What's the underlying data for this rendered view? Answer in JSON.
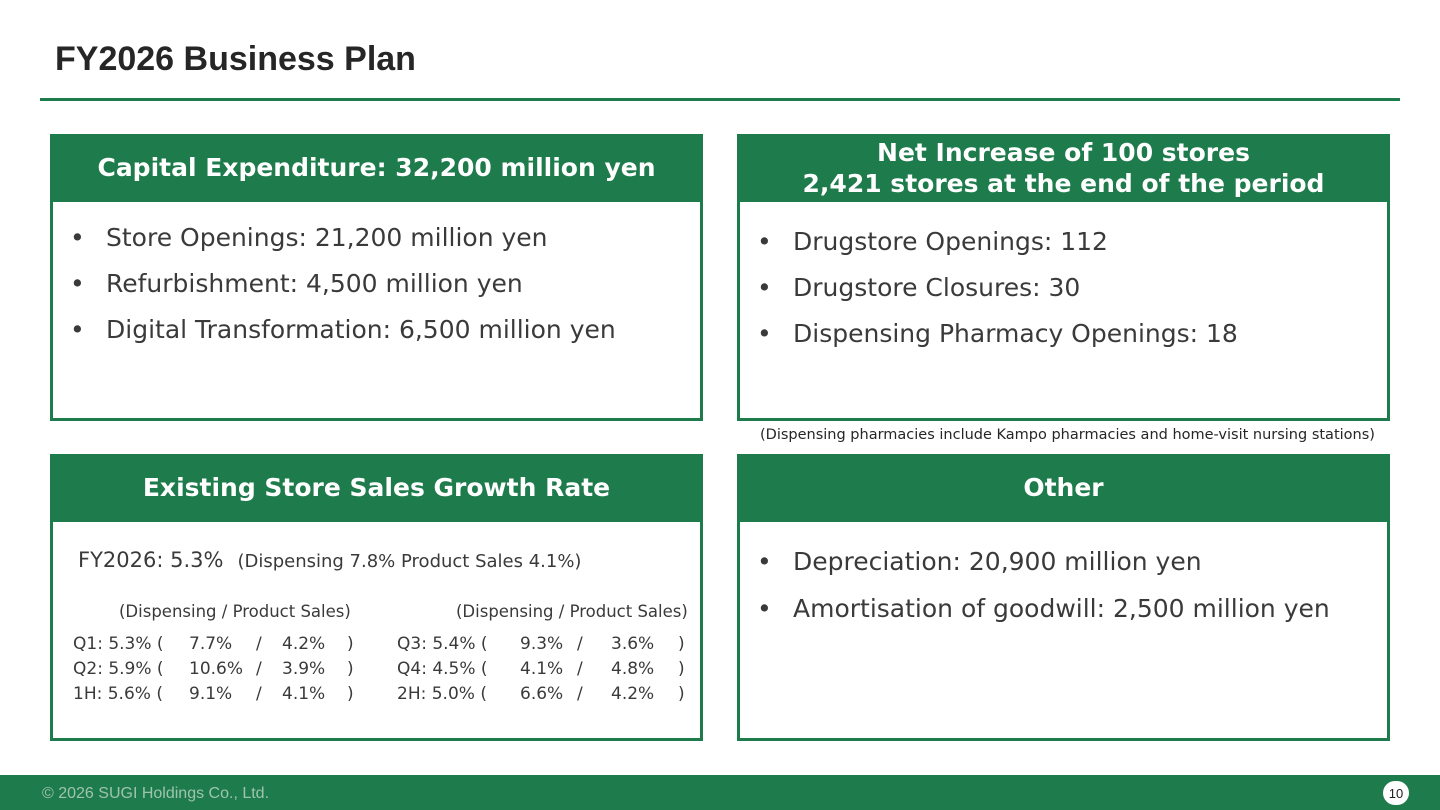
{
  "page": {
    "title": "FY2026 Business Plan"
  },
  "capex": {
    "header": "Capital Expenditure: 32,200 million yen",
    "items": [
      "Store Openings: 21,200 million yen",
      "Refurbishment: 4,500 million yen",
      "Digital Transformation: 6,500 million yen"
    ]
  },
  "stores": {
    "header_line1": "Net Increase of 100 stores",
    "header_line2": "2,421 stores at the end of the period",
    "items": [
      "Drugstore Openings: 112",
      "Drugstore Closures: 30",
      "Dispensing Pharmacy Openings: 18"
    ],
    "note": "(Dispensing pharmacies include Kampo pharmacies and home-visit nursing stations)"
  },
  "growth": {
    "header": "Existing Store Sales Growth Rate",
    "fy_label": "FY2026: 5.3%",
    "fy_breakdown": "(Dispensing 7.8%  Product Sales 4.1%)",
    "left_head": "(Dispensing / Product Sales)",
    "right_head": "(Dispensing / Product Sales)",
    "left_rows": [
      {
        "label": "Q1: 5.3% (",
        "disp": "7.7%",
        "sep": "/",
        "prod": "4.2%",
        "close": ")"
      },
      {
        "label": "Q2: 5.9% (",
        "disp": "10.6%",
        "sep": "/",
        "prod": "3.9%",
        "close": ")"
      },
      {
        "label": "1H: 5.6% (",
        "disp": "9.1%",
        "sep": "/",
        "prod": "4.1%",
        "close": ")"
      }
    ],
    "right_rows": [
      {
        "label": "Q3: 5.4% (",
        "disp": "9.3%",
        "sep": "/",
        "prod": "3.6%",
        "close": ")"
      },
      {
        "label": "Q4: 4.5% (",
        "disp": "4.1%",
        "sep": "/",
        "prod": "4.8%",
        "close": ")"
      },
      {
        "label": "2H: 5.0% (",
        "disp": "6.6%",
        "sep": "/",
        "prod": "4.2%",
        "close": ")"
      }
    ]
  },
  "other": {
    "header": "Other",
    "items": [
      "Depreciation: 20,900 million yen",
      "Amortisation of goodwill: 2,500 million yen"
    ]
  },
  "footer": {
    "copyright": "© 2026 SUGI Holdings Co., Ltd.",
    "page_number": "10"
  },
  "colors": {
    "accent_green": "#1e7b4b",
    "text": "#3a3a3a"
  },
  "icons": {
    "bullet": "•"
  }
}
